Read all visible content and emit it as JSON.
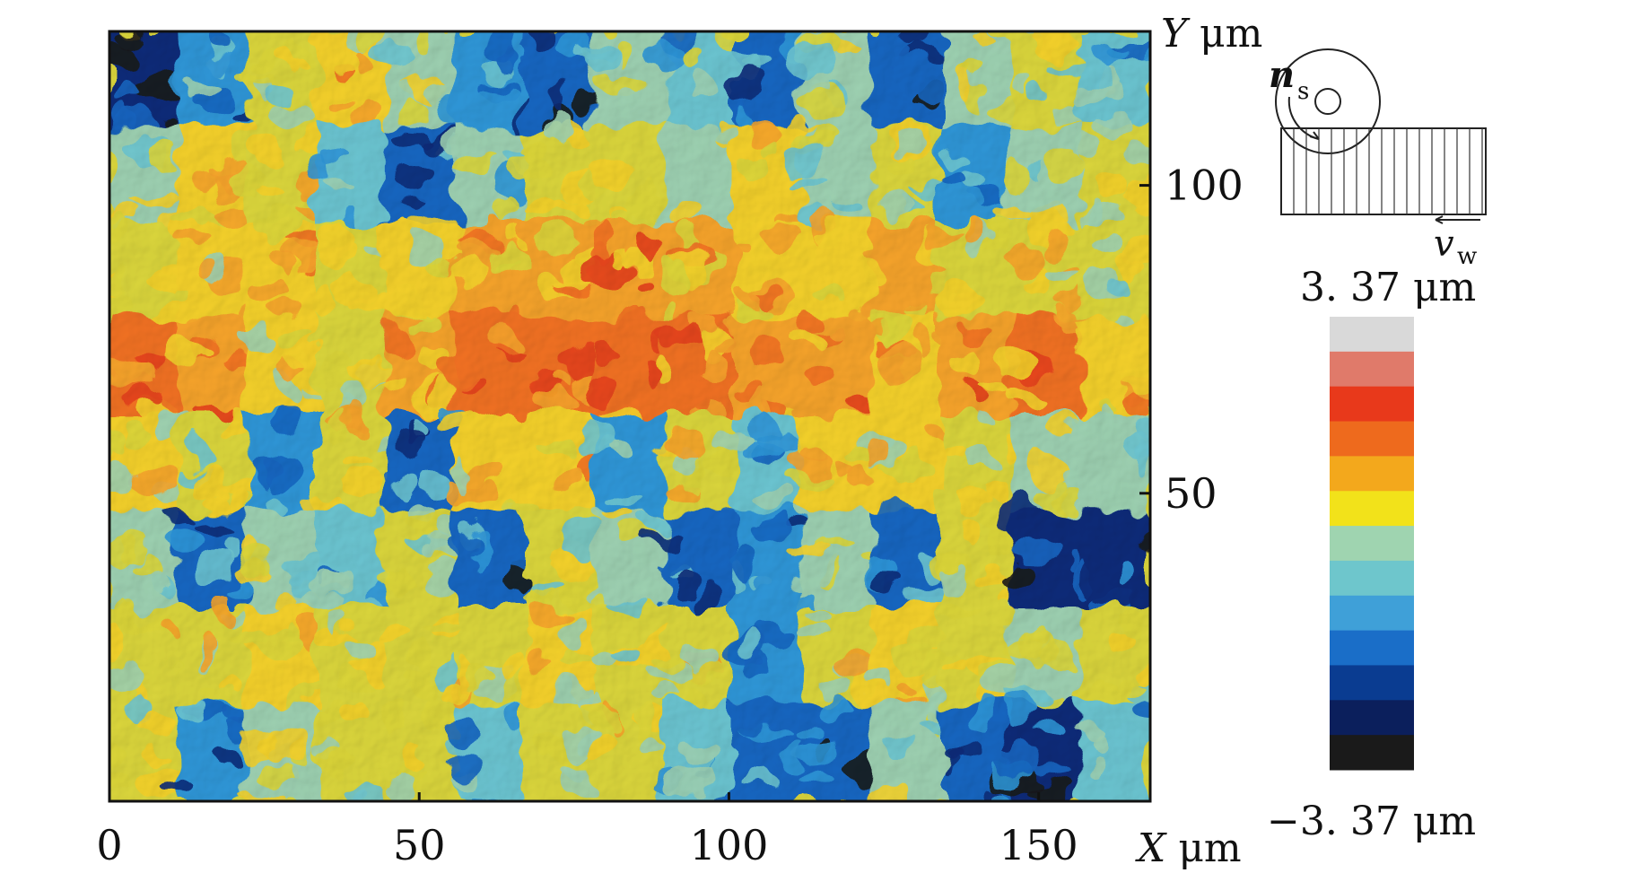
{
  "chart_data": {
    "type": "heatmap",
    "title": "",
    "xlabel": "X",
    "ylabel": "Y",
    "x_unit": "μm",
    "y_unit": "μm",
    "xlim": [
      0,
      168
    ],
    "ylim": [
      0,
      125
    ],
    "x_ticks": [
      "0",
      "50",
      "100",
      "150"
    ],
    "y_ticks": [
      "50",
      "100"
    ],
    "colorbar": {
      "max_label": "3. 37 μm",
      "min_label": "−3. 37 μm",
      "max": 3.37,
      "min": -3.37,
      "colors": [
        "#1a1a1a",
        "#0b1f5c",
        "#0a3c91",
        "#1a6ec8",
        "#3fa0d8",
        "#6ec6cc",
        "#9fd4b0",
        "#f2e21a",
        "#f3a81c",
        "#ee6a1d",
        "#e8391b",
        "#e07a6a",
        "#d9d9d9"
      ]
    },
    "surface_color_sequence": [
      "#1a1a1a",
      "#0b2a78",
      "#1565c0",
      "#2f95d6",
      "#6bc3cf",
      "#9ccfb0",
      "#d9d43a",
      "#f2cf2a",
      "#f4a22a",
      "#ef6f24",
      "#e3401c"
    ],
    "surface_samples_rows": [
      [
        -2.5,
        -1.2,
        0.4,
        1.1,
        0.3,
        -1.5,
        -1.8,
        0.2,
        -0.6,
        -1.7,
        0.0,
        -1.9,
        0.1,
        0.5,
        -0.8
      ],
      [
        0.3,
        1.2,
        0.8,
        -0.4,
        -1.6,
        0.1,
        0.6,
        0.9,
        0.3,
        1.0,
        -0.2,
        0.4,
        -1.3,
        0.2,
        0.6
      ],
      [
        0.5,
        1.0,
        1.3,
        0.6,
        1.1,
        1.6,
        1.8,
        2.0,
        1.7,
        1.4,
        1.2,
        1.6,
        0.9,
        0.7,
        0.5
      ],
      [
        2.3,
        1.9,
        1.2,
        0.9,
        1.6,
        2.2,
        2.4,
        2.5,
        2.3,
        2.1,
        1.8,
        1.4,
        2.0,
        2.4,
        1.3
      ],
      [
        1.1,
        0.6,
        -1.4,
        0.8,
        -1.6,
        1.1,
        1.5,
        -1.2,
        0.9,
        -0.8,
        1.3,
        1.0,
        0.7,
        0.3,
        0.2
      ],
      [
        0.2,
        -1.6,
        0.3,
        -0.9,
        0.5,
        -1.9,
        0.4,
        0.3,
        -1.8,
        -1.4,
        0.2,
        -1.6,
        0.5,
        -2.6,
        -2.3
      ],
      [
        0.9,
        0.8,
        1.2,
        0.7,
        0.4,
        0.9,
        1.0,
        0.6,
        0.8,
        -1.2,
        0.5,
        1.0,
        0.6,
        0.3,
        0.4
      ],
      [
        0.6,
        -1.4,
        0.3,
        0.5,
        0.7,
        -0.9,
        0.4,
        0.6,
        -0.5,
        -1.7,
        -2.1,
        0.3,
        -1.9,
        -2.2,
        -0.6
      ]
    ]
  },
  "schematic": {
    "wheel_speed_label": "n",
    "wheel_speed_sub": "s",
    "work_speed_label": "v",
    "work_speed_sub": "w"
  }
}
